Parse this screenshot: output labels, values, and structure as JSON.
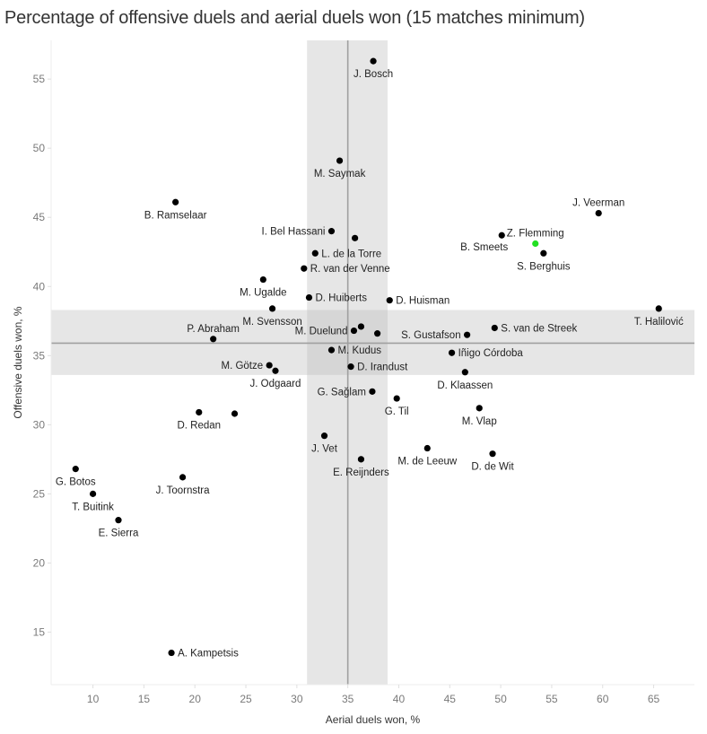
{
  "chart_data": {
    "type": "scatter",
    "title": "Percentage of offensive duels and aerial duels won (15 matches minimum)",
    "xlabel": "Aerial duels won, %",
    "ylabel": "Offensive duels won, %",
    "xlim": [
      5.9,
      69.0
    ],
    "ylim": [
      11.2,
      57.8
    ],
    "xticks": [
      10,
      15,
      20,
      25,
      30,
      35,
      40,
      45,
      50,
      55,
      60,
      65
    ],
    "yticks": [
      15,
      20,
      25,
      30,
      35,
      40,
      45,
      50,
      55
    ],
    "grid": false,
    "reference_lines": {
      "x_line": 35.0,
      "x_band": [
        31.0,
        38.9
      ],
      "y_line": 35.9,
      "y_band": [
        33.6,
        38.3
      ]
    },
    "colors": {
      "point": "#000000",
      "highlight": "#22e022",
      "band": "#e6e6e6",
      "band_overlap": "#d6d6d6",
      "ref_line": "#a0a0a0"
    },
    "points": [
      {
        "name": "J. Bosch",
        "x": 37.5,
        "y": 56.3,
        "label_pos": "below"
      },
      {
        "name": "M. Saymak",
        "x": 34.2,
        "y": 49.1,
        "label_pos": "below"
      },
      {
        "name": "B. Ramselaar",
        "x": 18.1,
        "y": 46.1,
        "label_pos": "below"
      },
      {
        "name": "J. Veerman",
        "x": 59.6,
        "y": 45.3,
        "label_pos": "above"
      },
      {
        "name": "I. Bel Hassani",
        "x": 33.4,
        "y": 44.0,
        "label_pos": "left"
      },
      {
        "name": "",
        "x": 35.7,
        "y": 43.5,
        "label_pos": "none"
      },
      {
        "name": "B. Smeets",
        "x": 50.1,
        "y": 43.7,
        "label_pos": "below-left"
      },
      {
        "name": "Z. Flemming",
        "x": 53.4,
        "y": 43.1,
        "label_pos": "above",
        "highlight": true
      },
      {
        "name": "S. Berghuis",
        "x": 54.2,
        "y": 42.4,
        "label_pos": "below"
      },
      {
        "name": "L. de la Torre",
        "x": 31.8,
        "y": 42.4,
        "label_pos": "right"
      },
      {
        "name": "R. van der Venne",
        "x": 30.7,
        "y": 41.3,
        "label_pos": "right"
      },
      {
        "name": "M. Ugalde",
        "x": 26.7,
        "y": 40.5,
        "label_pos": "below"
      },
      {
        "name": "D. Huiberts",
        "x": 31.2,
        "y": 39.2,
        "label_pos": "right"
      },
      {
        "name": "D. Huisman",
        "x": 39.1,
        "y": 39.0,
        "label_pos": "right"
      },
      {
        "name": "M. Svensson",
        "x": 27.6,
        "y": 38.4,
        "label_pos": "below"
      },
      {
        "name": "T. Halilović",
        "x": 65.5,
        "y": 38.4,
        "label_pos": "below"
      },
      {
        "name": "",
        "x": 36.3,
        "y": 37.1,
        "label_pos": "none"
      },
      {
        "name": "M. Duelund",
        "x": 35.6,
        "y": 36.8,
        "label_pos": "left"
      },
      {
        "name": "S. van de Streek",
        "x": 49.4,
        "y": 37.0,
        "label_pos": "right"
      },
      {
        "name": "",
        "x": 37.9,
        "y": 36.6,
        "label_pos": "none"
      },
      {
        "name": "S. Gustafson",
        "x": 46.7,
        "y": 36.5,
        "label_pos": "left"
      },
      {
        "name": "P. Abraham",
        "x": 21.8,
        "y": 36.2,
        "label_pos": "above"
      },
      {
        "name": "M. Kudus",
        "x": 33.4,
        "y": 35.4,
        "label_pos": "right"
      },
      {
        "name": "Iñigo Córdoba",
        "x": 45.2,
        "y": 35.2,
        "label_pos": "right"
      },
      {
        "name": "M. Götze",
        "x": 27.3,
        "y": 34.3,
        "label_pos": "left"
      },
      {
        "name": "D. Irandust",
        "x": 35.3,
        "y": 34.2,
        "label_pos": "right"
      },
      {
        "name": "J. Odgaard",
        "x": 27.9,
        "y": 33.9,
        "label_pos": "below"
      },
      {
        "name": "D. Klaassen",
        "x": 46.5,
        "y": 33.8,
        "label_pos": "below"
      },
      {
        "name": "G. Sağlam",
        "x": 37.4,
        "y": 32.4,
        "label_pos": "left"
      },
      {
        "name": "G. Til",
        "x": 39.8,
        "y": 31.9,
        "label_pos": "below"
      },
      {
        "name": "M. Vlap",
        "x": 47.9,
        "y": 31.2,
        "label_pos": "below"
      },
      {
        "name": "D. Redan",
        "x": 20.4,
        "y": 30.9,
        "label_pos": "below"
      },
      {
        "name": "",
        "x": 23.9,
        "y": 30.8,
        "label_pos": "none"
      },
      {
        "name": "J. Vet",
        "x": 32.7,
        "y": 29.2,
        "label_pos": "below"
      },
      {
        "name": "M. de Leeuw",
        "x": 42.8,
        "y": 28.3,
        "label_pos": "below"
      },
      {
        "name": "D. de Wit",
        "x": 49.2,
        "y": 27.9,
        "label_pos": "below"
      },
      {
        "name": "E. Reijnders",
        "x": 36.3,
        "y": 27.5,
        "label_pos": "below"
      },
      {
        "name": "G. Botos",
        "x": 8.3,
        "y": 26.8,
        "label_pos": "below"
      },
      {
        "name": "J. Toornstra",
        "x": 18.8,
        "y": 26.2,
        "label_pos": "below"
      },
      {
        "name": "T. Buitink",
        "x": 10.0,
        "y": 25.0,
        "label_pos": "below"
      },
      {
        "name": "E. Sierra",
        "x": 12.5,
        "y": 23.1,
        "label_pos": "below"
      },
      {
        "name": "A. Kampetsis",
        "x": 17.7,
        "y": 13.5,
        "label_pos": "right"
      }
    ]
  }
}
